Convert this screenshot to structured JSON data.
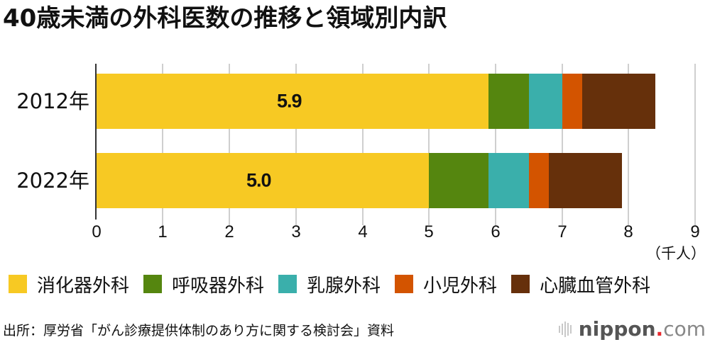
{
  "title": "40歳未満の外科医数の推移と領域別内訳",
  "axis": {
    "ticks": [
      "0",
      "1",
      "2",
      "3",
      "4",
      "5",
      "6",
      "7",
      "8",
      "9"
    ],
    "unit": "（千人）"
  },
  "rows": [
    {
      "label": "2012年",
      "bar_label": "5.9",
      "segments": [
        5.9,
        0.6,
        0.5,
        0.3,
        1.1
      ]
    },
    {
      "label": "2022年",
      "bar_label": "5.0",
      "segments": [
        5.0,
        0.9,
        0.6,
        0.3,
        1.1
      ]
    }
  ],
  "legend": [
    {
      "label": "消化器外科",
      "color": "#f7c923"
    },
    {
      "label": "呼吸器外科",
      "color": "#55860f"
    },
    {
      "label": "乳腺外科",
      "color": "#3aafab"
    },
    {
      "label": "小児外科",
      "color": "#d35400"
    },
    {
      "label": "心臓血管外科",
      "color": "#66300b"
    }
  ],
  "source": "出所：厚労省「がん診療提供体制のあり方に関する検討会」資料",
  "logo": {
    "brand": "nippon",
    "dot": ".",
    "tld": "com"
  },
  "chart_data": {
    "type": "bar",
    "orientation": "horizontal",
    "stacked": true,
    "title": "40歳未満の外科医数の推移と領域別内訳",
    "categories": [
      "2012年",
      "2022年"
    ],
    "series": [
      {
        "name": "消化器外科",
        "color": "#f7c923",
        "values": [
          5.9,
          5.0
        ]
      },
      {
        "name": "呼吸器外科",
        "color": "#55860f",
        "values": [
          0.6,
          0.9
        ]
      },
      {
        "name": "乳腺外科",
        "color": "#3aafab",
        "values": [
          0.5,
          0.6
        ]
      },
      {
        "name": "小児外科",
        "color": "#d35400",
        "values": [
          0.3,
          0.3
        ]
      },
      {
        "name": "心臓血管外科",
        "color": "#66300b",
        "values": [
          1.1,
          1.1
        ]
      }
    ],
    "totals": [
      8.4,
      7.9
    ],
    "data_labels": [
      "5.9",
      "5.0"
    ],
    "xlabel": "（千人）",
    "ylabel": "",
    "xlim": [
      0,
      9
    ],
    "xticks": [
      0,
      1,
      2,
      3,
      4,
      5,
      6,
      7,
      8,
      9
    ],
    "grid": "vertical",
    "legend_position": "bottom"
  }
}
